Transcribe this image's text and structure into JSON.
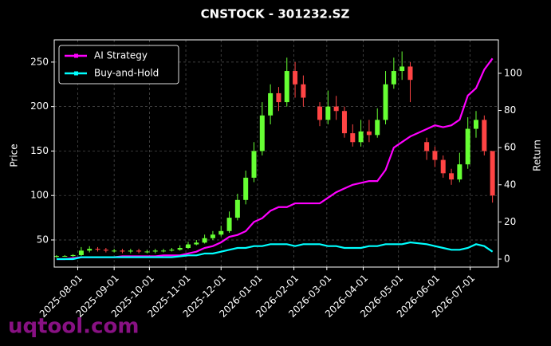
{
  "chart_data": {
    "type": "candlestick",
    "title": "CNSTOCK - 301232.SZ",
    "ylabel": "Price",
    "y2label": "Return",
    "watermark": "uqtool.com",
    "grid": true,
    "legend": "upper left",
    "up_color": "#66ff33",
    "down_color": "#ff4444",
    "x": [
      "2025-07-14",
      "2025-07-21",
      "2025-07-28",
      "2025-08-04",
      "2025-08-11",
      "2025-08-18",
      "2025-08-25",
      "2025-09-01",
      "2025-09-08",
      "2025-09-15",
      "2025-09-22",
      "2025-09-29",
      "2025-10-06",
      "2025-10-13",
      "2025-10-20",
      "2025-10-27",
      "2025-11-03",
      "2025-11-10",
      "2025-11-17",
      "2025-11-24",
      "2025-12-01",
      "2025-12-08",
      "2025-12-15",
      "2025-12-22",
      "2025-12-29",
      "2026-01-05",
      "2026-01-12",
      "2026-01-19",
      "2026-01-26",
      "2026-02-02",
      "2026-02-09",
      "2026-02-23",
      "2026-03-02",
      "2026-03-09",
      "2026-03-16",
      "2026-03-23",
      "2026-03-30",
      "2026-04-06",
      "2026-04-13",
      "2026-04-20",
      "2026-04-27",
      "2026-05-04",
      "2026-05-11",
      "2026-05-25",
      "2026-06-01",
      "2026-06-08",
      "2026-06-15",
      "2026-06-22",
      "2026-06-29",
      "2026-07-06",
      "2026-07-13",
      "2026-07-20"
    ],
    "candles": {
      "open": [
        31,
        32,
        32,
        33,
        38,
        40,
        39,
        38,
        38,
        37,
        38,
        37,
        37,
        38,
        38,
        39,
        41,
        45,
        47,
        52,
        56,
        60,
        75,
        95,
        120,
        150,
        190,
        215,
        205,
        240,
        225,
        200,
        185,
        200,
        195,
        170,
        160,
        172,
        168,
        185,
        225,
        240,
        245,
        160,
        150,
        140,
        125,
        118,
        135,
        175,
        185,
        150
      ],
      "close": [
        32,
        32,
        33,
        38,
        40,
        39,
        38,
        38,
        37,
        38,
        37,
        37,
        38,
        38,
        39,
        41,
        45,
        47,
        52,
        56,
        60,
        75,
        95,
        120,
        150,
        190,
        215,
        205,
        240,
        225,
        210,
        185,
        200,
        195,
        170,
        160,
        172,
        168,
        185,
        225,
        240,
        245,
        230,
        150,
        140,
        125,
        118,
        135,
        175,
        185,
        150,
        100
      ],
      "high": [
        33,
        33,
        34,
        42,
        43,
        42,
        41,
        40,
        40,
        40,
        40,
        39,
        40,
        40,
        41,
        44,
        48,
        50,
        56,
        60,
        66,
        82,
        102,
        128,
        160,
        205,
        225,
        222,
        255,
        250,
        235,
        205,
        218,
        212,
        200,
        180,
        185,
        185,
        198,
        240,
        255,
        262,
        250,
        165,
        155,
        145,
        130,
        148,
        188,
        195,
        190,
        125
      ],
      "low": [
        30,
        31,
        31,
        32,
        36,
        37,
        36,
        36,
        35,
        35,
        35,
        35,
        35,
        36,
        37,
        38,
        40,
        44,
        46,
        50,
        54,
        58,
        72,
        90,
        115,
        145,
        180,
        195,
        200,
        210,
        200,
        178,
        180,
        185,
        165,
        155,
        155,
        160,
        165,
        180,
        220,
        230,
        205,
        140,
        132,
        120,
        112,
        115,
        130,
        165,
        145,
        92
      ]
    },
    "series": [
      {
        "name": "AI Strategy",
        "color": "#ff00ff",
        "axis": "y2",
        "values": [
          0,
          0,
          0.5,
          1,
          1,
          1,
          1,
          1,
          1.5,
          1.5,
          1.5,
          1.5,
          1.5,
          2,
          2,
          2,
          3,
          4,
          6,
          7,
          9,
          12,
          13,
          15,
          20,
          22,
          26,
          28,
          28,
          30,
          30,
          30,
          33,
          36,
          38,
          40,
          41,
          42,
          42,
          48,
          60,
          63,
          66,
          70,
          72,
          71,
          72,
          75,
          88,
          92,
          102,
          108
        ]
      },
      {
        "name": "Buy-and-Hold",
        "color": "#00ffff",
        "axis": "y2",
        "values": [
          0,
          0,
          0,
          1,
          1,
          1,
          1,
          1,
          1,
          1,
          1,
          1,
          1,
          1,
          1,
          1.5,
          2,
          2,
          3,
          3,
          4,
          5,
          6,
          6,
          7,
          7,
          8,
          8,
          8,
          7,
          8,
          8,
          7,
          7,
          6,
          6,
          6,
          7,
          7,
          8,
          8,
          8,
          9,
          8,
          7,
          6,
          5,
          5,
          6,
          8,
          7,
          4
        ]
      }
    ],
    "xlim": [
      "2025-07-12",
      "2026-07-25"
    ],
    "xticks": [
      "2025-08-01",
      "2025-09-01",
      "2025-10-01",
      "2025-11-01",
      "2025-12-01",
      "2026-01-01",
      "2026-02-01",
      "2026-03-01",
      "2026-04-01",
      "2026-05-01",
      "2026-06-01",
      "2026-07-01"
    ],
    "ylim": [
      19.5,
      275
    ],
    "yticks": [
      50,
      100,
      150,
      200,
      250
    ],
    "y2lim": [
      -4.3,
      118
    ],
    "y2ticks": [
      0,
      20,
      40,
      60,
      80,
      100
    ]
  }
}
